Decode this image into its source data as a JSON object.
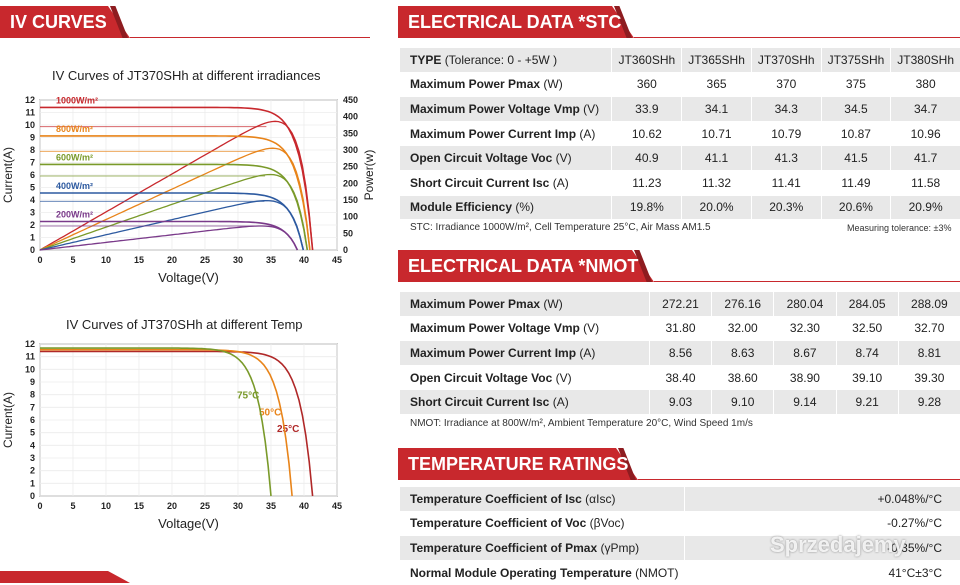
{
  "iv_banner": "IV CURVES",
  "elec_stc_banner": "ELECTRICAL DATA *STC",
  "elec_nmot_banner": "ELECTRICAL DATA *NMOT",
  "temp_banner": "TEMPERATURE RATINGS",
  "watermark": "Sprzedajemy",
  "stc": {
    "header": {
      "label": "TYPE",
      "unit": "(Tolerance: 0 - +5W )",
      "models": [
        "JT360SHh",
        "JT365SHh",
        "JT370SHh",
        "JT375SHh",
        "JT380SHh"
      ]
    },
    "rows": [
      {
        "label": "Maximum Power Pmax",
        "unit": "(W)",
        "values": [
          "360",
          "365",
          "370",
          "375",
          "380"
        ]
      },
      {
        "label": "Maximum Power Voltage  Vmp",
        "unit": "(V)",
        "values": [
          "33.9",
          "34.1",
          "34.3",
          "34.5",
          "34.7"
        ]
      },
      {
        "label": "Maximum Power Current  Imp",
        "unit": "(A)",
        "values": [
          "10.62",
          "10.71",
          "10.79",
          "10.87",
          "10.96"
        ]
      },
      {
        "label": "Open Circuit Voltage  Voc",
        "unit": "(V)",
        "values": [
          "40.9",
          "41.1",
          "41.3",
          "41.5",
          "41.7"
        ]
      },
      {
        "label": "Short Circuit Current  Isc",
        "unit": "(A)",
        "values": [
          "11.23",
          "11.32",
          "11.41",
          "11.49",
          "11.58"
        ]
      },
      {
        "label": "Module Efficiency",
        "unit": "(%)",
        "values": [
          "19.8%",
          "20.0%",
          "20.3%",
          "20.6%",
          "20.9%"
        ]
      }
    ],
    "note": "STC: Irradiance 1000W/m², Cell Temperature 25°C, Air Mass AM1.5",
    "tolerance_note": "Measuring tolerance: ±3%"
  },
  "nmot": {
    "rows": [
      {
        "label": "Maximum Power  Pmax",
        "unit": "(W)",
        "values": [
          "272.21",
          "276.16",
          "280.04",
          "284.05",
          "288.09"
        ]
      },
      {
        "label": "Maximum Power Voltage  Vmp",
        "unit": "(V)",
        "values": [
          "31.80",
          "32.00",
          "32.30",
          "32.50",
          "32.70"
        ]
      },
      {
        "label": "Maximum Power Current  Imp",
        "unit": "(A)",
        "values": [
          "8.56",
          "8.63",
          "8.67",
          "8.74",
          "8.81"
        ]
      },
      {
        "label": "Open Circuit Voltage  Voc",
        "unit": "(V)",
        "values": [
          "38.40",
          "38.60",
          "38.90",
          "39.10",
          "39.30"
        ]
      },
      {
        "label": "Short Circuit Current  Isc",
        "unit": "(A)",
        "values": [
          "9.03",
          "9.10",
          "9.14",
          "9.21",
          "9.28"
        ]
      }
    ],
    "note": "NMOT: Irradiance at 800W/m², Ambient Temperature 20°C, Wind Speed 1m/s"
  },
  "temperature": {
    "rows": [
      {
        "label": "Temperature Coefficient of Isc",
        "unit": "(αIsc)",
        "value": "+0.048%/°C"
      },
      {
        "label": "Temperature Coefficient of Voc",
        "unit": "(βVoc)",
        "value": "-0.27%/°C"
      },
      {
        "label": "Temperature Coefficient of Pmax",
        "unit": "(γPmp)",
        "value": "-0.35%/°C"
      },
      {
        "label": "Normal Module Operating Temperature",
        "unit": "(NMOT)",
        "value": "41°C±3°C"
      }
    ]
  },
  "chart_data": [
    {
      "type": "line",
      "title": "IV Curves of JT370SHh at different irradiances",
      "xlabel": "Voltage(V)",
      "ylabel": "Current(A)",
      "y2label": "Power(w)",
      "xlim": [
        0,
        45
      ],
      "ylim": [
        0,
        12
      ],
      "y2lim": [
        0,
        450
      ],
      "xticks": [
        0,
        5,
        10,
        15,
        20,
        25,
        30,
        35,
        40,
        45
      ],
      "yticks": [
        0,
        1,
        2,
        3,
        4,
        5,
        6,
        7,
        8,
        9,
        10,
        11,
        12
      ],
      "y2ticks": [
        0,
        50,
        100,
        150,
        200,
        250,
        300,
        350,
        400,
        450
      ],
      "series": [
        {
          "name": "1000W/m²",
          "color": "#c8282d",
          "isc": 11.41,
          "voc": 41.3,
          "pmax": 370,
          "vmp": 34.3
        },
        {
          "name": "800W/m²",
          "color": "#e8841a",
          "isc": 9.13,
          "voc": 40.9,
          "pmax": 296,
          "vmp": 34.0
        },
        {
          "name": "600W/m²",
          "color": "#7a9a2a",
          "isc": 6.85,
          "voc": 40.5,
          "pmax": 222,
          "vmp": 34.1
        },
        {
          "name": "400W/m²",
          "color": "#2d5aa0",
          "isc": 4.56,
          "voc": 39.9,
          "pmax": 146,
          "vmp": 34.0
        },
        {
          "name": "200W/m²",
          "color": "#7a3a8a",
          "isc": 2.28,
          "voc": 39.0,
          "pmax": 72,
          "vmp": 33.5
        }
      ]
    },
    {
      "type": "line",
      "title": "IV Curves of JT370SHh at different Temp",
      "xlabel": "Voltage(V)",
      "ylabel": "Current(A)",
      "xlim": [
        0,
        45
      ],
      "ylim": [
        0,
        12
      ],
      "xticks": [
        0,
        5,
        10,
        15,
        20,
        25,
        30,
        35,
        40,
        45
      ],
      "yticks": [
        0,
        1,
        2,
        3,
        4,
        5,
        6,
        7,
        8,
        9,
        10,
        11,
        12
      ],
      "series": [
        {
          "name": "25°C",
          "color": "#b02828",
          "isc": 11.41,
          "voc": 41.3
        },
        {
          "name": "50°C",
          "color": "#e8841a",
          "isc": 11.55,
          "voc": 38.2
        },
        {
          "name": "75°C",
          "color": "#7a9a2a",
          "isc": 11.68,
          "voc": 35.0
        }
      ]
    }
  ]
}
